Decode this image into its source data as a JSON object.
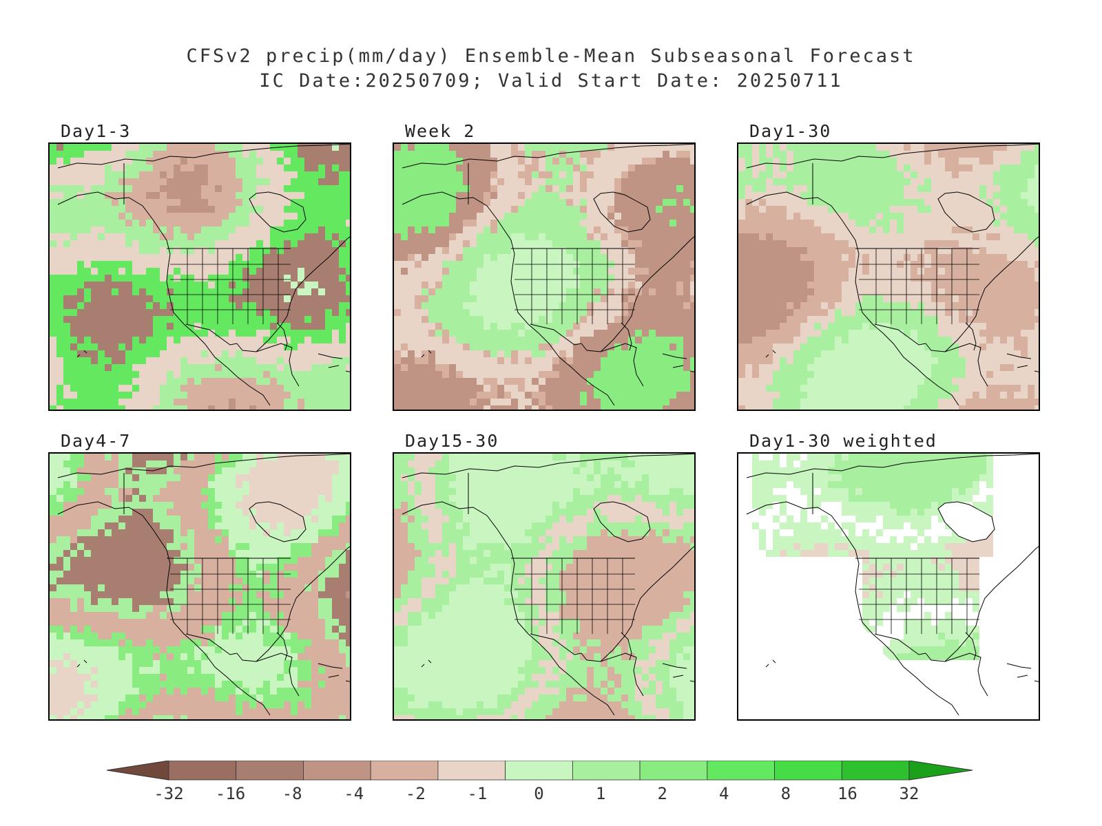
{
  "title": {
    "line1": "CFSv2 precip(mm/day) Ensemble-Mean Subseasonal Forecast",
    "line2": "IC Date:20250709; Valid Start Date: 20250711"
  },
  "panels": [
    {
      "id": "p1",
      "label": "Day1-3",
      "pattern": "strong"
    },
    {
      "id": "p2",
      "label": "Week 2",
      "pattern": "moderate"
    },
    {
      "id": "p3",
      "label": "Day1-30",
      "pattern": "mild"
    },
    {
      "id": "p4",
      "label": "Day4-7",
      "pattern": "strong2"
    },
    {
      "id": "p5",
      "label": "Day15-30",
      "pattern": "mild2"
    },
    {
      "id": "p6",
      "label": "Day1-30 weighted",
      "pattern": "masked"
    }
  ],
  "colorbar": {
    "ticks": [
      "-32",
      "-16",
      "-8",
      "-4",
      "-2",
      "-1",
      "0",
      "1",
      "2",
      "4",
      "8",
      "16",
      "32"
    ],
    "colors": [
      "#70483c",
      "#9a6e60",
      "#a87e70",
      "#c09484",
      "#d8b0a0",
      "#e9d5c8",
      "#c8f5c0",
      "#a8f0a0",
      "#88ec80",
      "#64e860",
      "#46dc46",
      "#2ec02e",
      "#1aa01a"
    ]
  }
}
